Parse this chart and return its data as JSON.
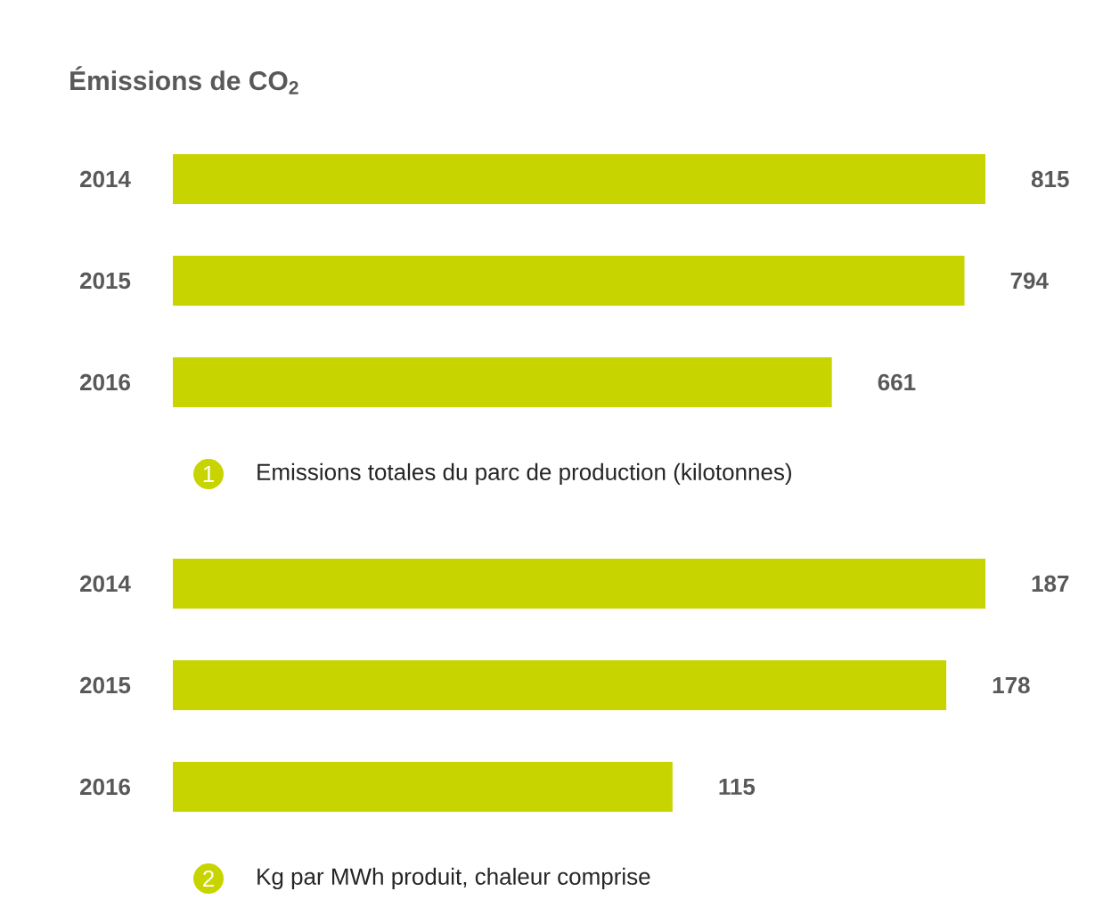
{
  "chart_data": [
    {
      "type": "bar",
      "orientation": "horizontal",
      "title": "Émissions de CO$_{2}$",
      "categories": [
        "2014",
        "2015",
        "2016"
      ],
      "values": [
        815,
        794,
        661
      ],
      "color": "#c8d400",
      "data_labels": true,
      "annotations": [
        "1",
        "Emissions totales du parc de production (kilotonnes)"
      ]
    },
    {
      "type": "bar",
      "orientation": "horizontal",
      "categories": [
        "2014",
        "2015",
        "2016"
      ],
      "values": [
        187,
        178,
        115
      ],
      "color": "#c8d400",
      "data_labels": true,
      "annotations": [
        "2",
        "Kg par MWh produit, chaleur comprise"
      ]
    }
  ]
}
